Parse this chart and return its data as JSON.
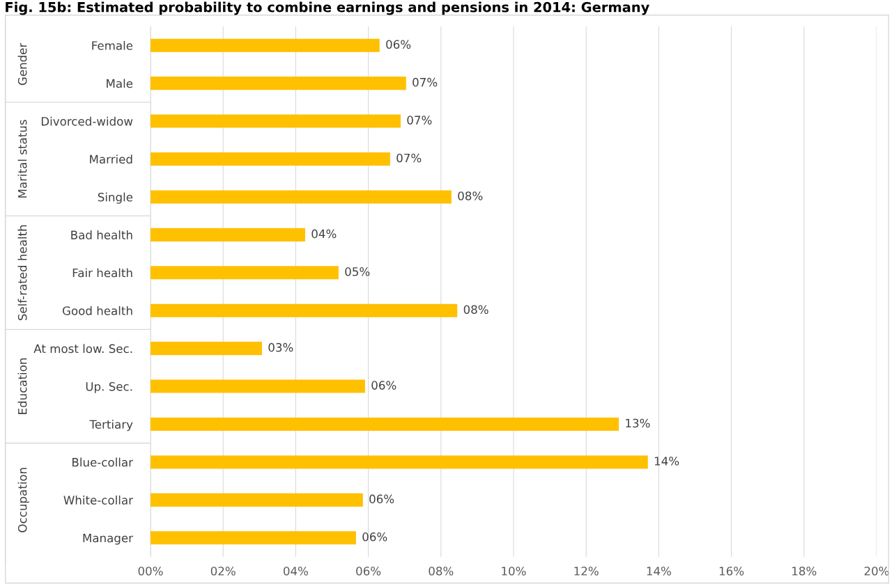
{
  "chart_data": {
    "type": "bar",
    "orientation": "horizontal",
    "title": "Fig. 15b: Estimated probability to combine earnings and pensions in 2014: Germany",
    "categories": [
      "Female",
      "Male",
      "Divorced-widow",
      "Married",
      "Single",
      "Bad health",
      "Fair health",
      "Good health",
      "At most low. Sec.",
      "Up. Sec.",
      "Tertiary",
      "Blue-collar",
      "White-collar",
      "Manager"
    ],
    "values": [
      6.31,
      7.04,
      6.89,
      6.6,
      8.29,
      4.26,
      5.18,
      8.45,
      3.07,
      5.91,
      12.9,
      13.7,
      5.85,
      5.66
    ],
    "value_labels": [
      "06%",
      "07%",
      "07%",
      "07%",
      "08%",
      "04%",
      "05%",
      "08%",
      "03%",
      "06%",
      "13%",
      "14%",
      "06%",
      "06%"
    ],
    "color": "#ffc000",
    "annotations": [
      "Gender",
      "Marital status",
      "Self-rated health",
      "Education",
      "Occupation"
    ],
    "xlim": [
      0,
      20
    ],
    "xticks": [
      {
        "value": 0,
        "label": "00%"
      },
      {
        "value": 2,
        "label": "02%"
      },
      {
        "value": 4,
        "label": "04%"
      },
      {
        "value": 6,
        "label": "06%"
      },
      {
        "value": 8,
        "label": "08%"
      },
      {
        "value": 10,
        "label": "10%"
      },
      {
        "value": 12,
        "label": "12%"
      },
      {
        "value": 14,
        "label": "14%"
      },
      {
        "value": 16,
        "label": "16%"
      },
      {
        "value": 18,
        "label": "18%"
      },
      {
        "value": 20,
        "label": "20%"
      }
    ],
    "grid": "x"
  }
}
